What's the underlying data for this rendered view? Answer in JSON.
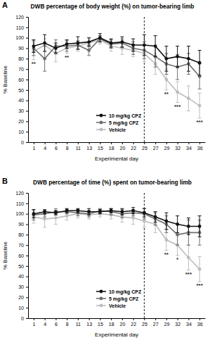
{
  "chart_data": [
    {
      "type": "line",
      "label": "A",
      "title": "DWB percentage of body weight (%) on tumor-bearing limb",
      "x_label": "Experimental day",
      "y_label": "% Baseline",
      "categories": [
        "1",
        "4",
        "6",
        "8",
        "11",
        "13",
        "15",
        "18",
        "20",
        "22",
        "25",
        "27",
        "29",
        "32",
        "34",
        "36"
      ],
      "ylim": [
        0,
        120
      ],
      "yticks": [
        0,
        10,
        20,
        30,
        40,
        50,
        60,
        70,
        80,
        90,
        100,
        110,
        120
      ],
      "legend": "lower center",
      "reference_line": {
        "x": "25",
        "line_style": "dashed"
      },
      "series": [
        {
          "name": "10 mg/kg CPZ",
          "color": "#111111",
          "marker": "circle",
          "values": [
            92,
            95,
            90,
            94,
            95,
            96,
            100,
            95,
            96,
            93,
            93,
            92,
            80,
            82,
            80,
            76
          ],
          "errors": [
            6,
            8,
            5,
            4,
            6,
            4,
            4,
            4,
            5,
            6,
            10,
            10,
            12,
            10,
            12,
            12
          ]
        },
        {
          "name": "5 mg/kg CPZ",
          "color": "#6e6e6e",
          "marker": "circle",
          "values": [
            90,
            80,
            92,
            92,
            93,
            88,
            99,
            94,
            95,
            90,
            88,
            82,
            75,
            72,
            75,
            63
          ],
          "errors": [
            7,
            12,
            6,
            5,
            4,
            5,
            3,
            4,
            4,
            6,
            8,
            10,
            10,
            12,
            10,
            12
          ]
        },
        {
          "name": "Vehicle",
          "color": "#bdbdbd",
          "marker": "circle",
          "values": [
            87,
            93,
            85,
            90,
            92,
            95,
            98,
            92,
            90,
            88,
            85,
            75,
            60,
            48,
            42,
            35
          ],
          "errors": [
            8,
            6,
            8,
            5,
            5,
            4,
            4,
            5,
            6,
            6,
            8,
            10,
            10,
            10,
            12,
            12
          ]
        }
      ],
      "annotations": [
        {
          "x": "1",
          "series": "Vehicle",
          "text": "**"
        },
        {
          "x": "8",
          "series": "Vehicle",
          "text": "**"
        },
        {
          "x": "29",
          "series": "Vehicle",
          "text": "**"
        },
        {
          "x": "32",
          "series": "Vehicle",
          "text": "***"
        },
        {
          "x": "36",
          "series": "Vehicle",
          "text": "***"
        }
      ]
    },
    {
      "type": "line",
      "label": "B",
      "title": "DWB percentage of time (%) spent on tumor-bearing limb",
      "x_label": "Experimental day",
      "y_label": "% Baseline",
      "categories": [
        "1",
        "4",
        "6",
        "8",
        "11",
        "13",
        "15",
        "18",
        "20",
        "22",
        "25",
        "27",
        "29",
        "32",
        "34",
        "36"
      ],
      "ylim": [
        0,
        120
      ],
      "yticks": [
        0,
        10,
        20,
        30,
        40,
        50,
        60,
        70,
        80,
        90,
        100,
        110,
        120
      ],
      "legend": "lower center",
      "reference_line": {
        "x": "25",
        "line_style": "dashed"
      },
      "series": [
        {
          "name": "10 mg/kg CPZ",
          "color": "#111111",
          "marker": "circle",
          "values": [
            100,
            102,
            101,
            103,
            103,
            102,
            102,
            103,
            102,
            103,
            101,
            97,
            93,
            90,
            88,
            88
          ],
          "errors": [
            4,
            2,
            2,
            2,
            2,
            3,
            2,
            2,
            3,
            3,
            4,
            5,
            8,
            8,
            8,
            10
          ]
        },
        {
          "name": "5 mg/kg CPZ",
          "color": "#6e6e6e",
          "marker": "circle",
          "values": [
            99,
            100,
            102,
            102,
            101,
            100,
            103,
            102,
            100,
            101,
            100,
            95,
            90,
            80,
            82,
            82
          ],
          "errors": [
            5,
            3,
            3,
            2,
            3,
            3,
            2,
            3,
            4,
            3,
            5,
            6,
            8,
            10,
            12,
            12
          ]
        },
        {
          "name": "Vehicle",
          "color": "#bdbdbd",
          "marker": "circle",
          "values": [
            97,
            95,
            96,
            98,
            100,
            99,
            100,
            99,
            97,
            96,
            93,
            90,
            75,
            70,
            58,
            47
          ],
          "errors": [
            6,
            8,
            6,
            4,
            4,
            4,
            3,
            4,
            5,
            6,
            6,
            8,
            10,
            10,
            12,
            12
          ]
        }
      ],
      "annotations": [
        {
          "x": "29",
          "series": "Vehicle",
          "text": "**"
        },
        {
          "x": "32",
          "series": "Vehicle",
          "text": "*"
        },
        {
          "x": "34",
          "series": "Vehicle",
          "text": "***"
        },
        {
          "x": "36",
          "series": "Vehicle",
          "text": "***"
        }
      ]
    }
  ]
}
